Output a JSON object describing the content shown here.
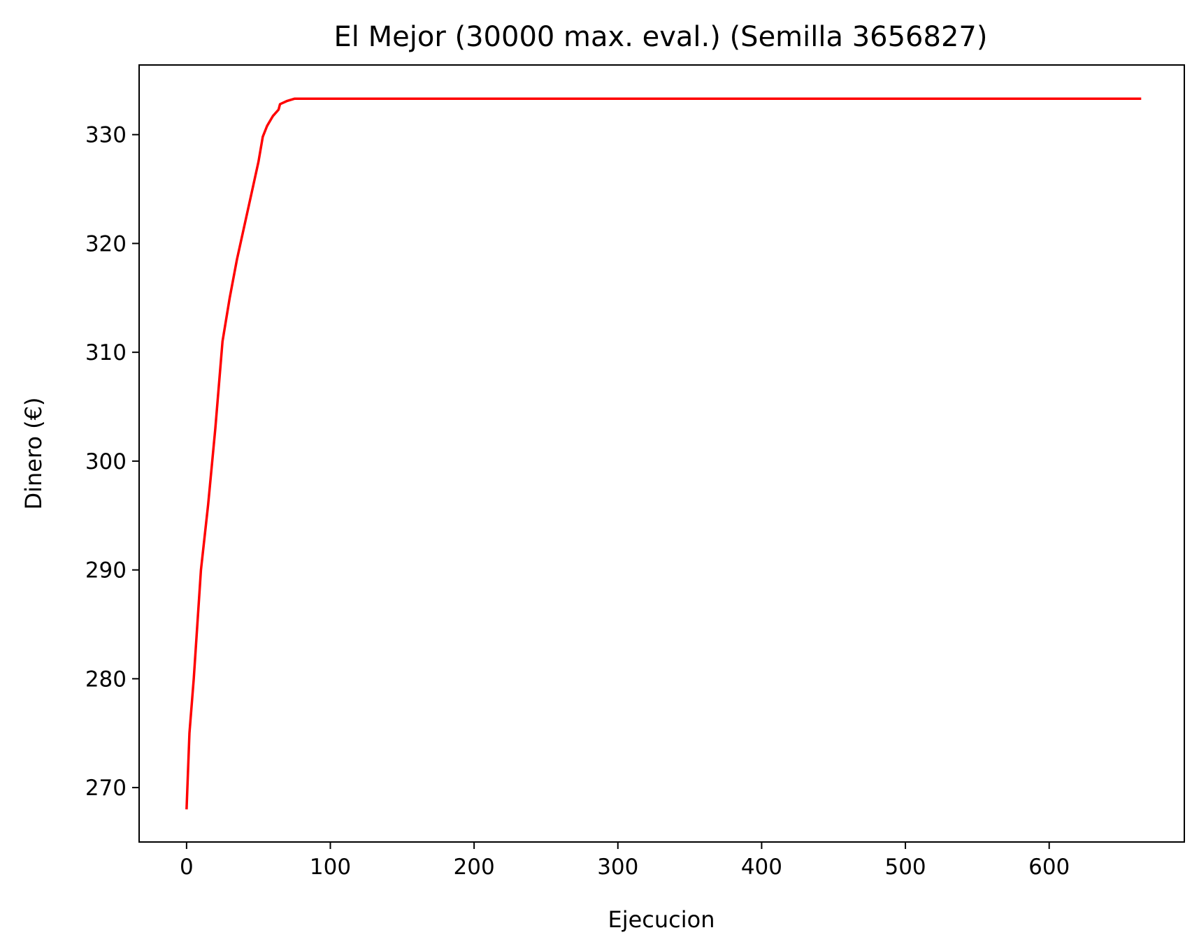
{
  "chart_data": {
    "type": "line",
    "title": "El Mejor (30000 max. eval.) (Semilla 3656827)",
    "xlabel": "Ejecucion",
    "ylabel": "Dinero (€)",
    "xlim": [
      -33,
      694
    ],
    "ylim": [
      265,
      336.4
    ],
    "x_ticks": [
      0,
      100,
      200,
      300,
      400,
      500,
      600
    ],
    "y_ticks": [
      270,
      280,
      290,
      300,
      310,
      320,
      330
    ],
    "grid": false,
    "legend": "none",
    "series": [
      {
        "color": "#ff0000",
        "points": [
          [
            0,
            268
          ],
          [
            2,
            275
          ],
          [
            5,
            280
          ],
          [
            10,
            290
          ],
          [
            15,
            296
          ],
          [
            20,
            303
          ],
          [
            25,
            311
          ],
          [
            30,
            315
          ],
          [
            35,
            318.5
          ],
          [
            40,
            321.5
          ],
          [
            45,
            324.5
          ],
          [
            50,
            327.5
          ],
          [
            53,
            329.8
          ],
          [
            56,
            330.8
          ],
          [
            60,
            331.7
          ],
          [
            64,
            332.3
          ],
          [
            65,
            332.8
          ],
          [
            70,
            333.1
          ],
          [
            75,
            333.3
          ],
          [
            100,
            333.3
          ],
          [
            200,
            333.3
          ],
          [
            300,
            333.3
          ],
          [
            400,
            333.3
          ],
          [
            500,
            333.3
          ],
          [
            600,
            333.3
          ],
          [
            664,
            333.3
          ]
        ]
      }
    ]
  }
}
